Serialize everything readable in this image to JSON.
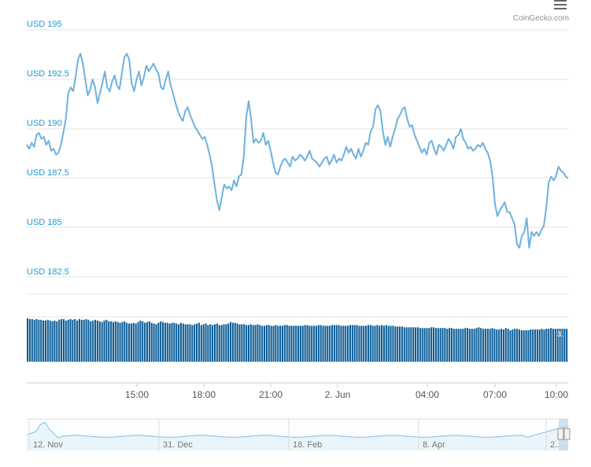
{
  "credit": "CoinGecko.com",
  "colors": {
    "price_line": "#6fb1de",
    "volume_bar": "#0a5c96",
    "y_label": "#1a9bd7",
    "grid": "#e6e6e6",
    "axis_text": "#555555",
    "navigator_line": "#7fbce3",
    "navigator_fill": "#eaf4fb",
    "navigator_handle": "#c5d9ec"
  },
  "chart_data": {
    "type": "line",
    "series": [
      {
        "values": [
          189.2,
          189.0,
          189.3,
          189.1,
          189.7,
          189.8,
          189.5,
          189.6,
          189.2,
          189.4,
          188.9,
          189.0,
          188.7,
          188.8,
          189.2,
          189.8,
          190.5,
          191.8,
          192.1,
          191.9,
          192.6,
          193.5,
          193.8,
          193.3,
          192.5,
          191.7,
          192.0,
          192.5,
          192.1,
          191.3,
          191.8,
          192.3,
          192.9,
          192.1,
          191.9,
          192.4,
          192.7,
          192.2,
          192.0,
          192.8,
          193.6,
          193.8,
          193.5,
          192.3,
          191.9,
          192.5,
          192.9,
          192.2,
          192.6,
          193.2,
          192.9,
          193.1,
          193.3,
          193.0,
          192.8,
          192.1,
          192.0,
          192.5,
          192.9,
          192.2,
          191.8,
          191.3,
          190.9,
          190.6,
          190.4,
          190.9,
          191.1,
          190.7,
          190.4,
          190.1,
          189.9,
          189.7,
          189.5,
          189.6,
          189.2,
          188.7,
          188.1,
          187.2,
          186.4,
          185.9,
          186.6,
          187.2,
          187.0,
          187.1,
          186.9,
          187.4,
          187.1,
          187.6,
          187.7,
          188.6,
          190.6,
          191.4,
          190.5,
          189.3,
          189.5,
          189.3,
          189.4,
          189.8,
          189.2,
          189.4,
          188.9,
          188.3,
          187.8,
          187.7,
          188.1,
          188.4,
          188.5,
          188.3,
          188.1,
          188.6,
          188.4,
          188.5,
          188.7,
          188.6,
          188.4,
          188.6,
          188.9,
          188.5,
          188.4,
          188.3,
          188.1,
          188.3,
          188.5,
          188.6,
          188.2,
          188.4,
          188.7,
          188.3,
          188.5,
          188.4,
          188.7,
          189.1,
          188.8,
          189.0,
          188.7,
          188.5,
          189.0,
          188.6,
          188.9,
          189.3,
          189.2,
          189.9,
          190.1,
          191.0,
          191.2,
          190.9,
          189.9,
          189.2,
          189.6,
          189.1,
          189.6,
          190.0,
          190.5,
          190.7,
          191.0,
          191.1,
          190.5,
          190.1,
          190.2,
          189.7,
          189.4,
          189.1,
          188.8,
          189.0,
          188.7,
          189.3,
          189.4,
          189.0,
          188.7,
          189.2,
          189.1,
          188.9,
          189.2,
          189.5,
          189.3,
          189.0,
          189.6,
          189.7,
          190.0,
          189.5,
          189.3,
          189.0,
          189.1,
          188.9,
          189.0,
          189.2,
          189.1,
          189.3,
          189.0,
          188.8,
          188.4,
          187.6,
          186.2,
          185.6,
          185.9,
          186.1,
          186.3,
          185.8,
          185.8,
          185.5,
          185.2,
          184.2,
          184.0,
          184.6,
          184.8,
          185.5,
          184.0,
          184.8,
          184.6,
          184.8,
          184.6,
          184.9,
          185.1,
          186.0,
          187.3,
          187.6,
          187.4,
          187.6,
          188.1,
          187.9,
          187.8,
          187.6,
          187.5
        ]
      }
    ],
    "volume": [
      58,
      57,
      57,
      56,
      57,
      56,
      56,
      55,
      55,
      56,
      55,
      54,
      55,
      54,
      56,
      57,
      57,
      55,
      56,
      57,
      56,
      57,
      55,
      57,
      56,
      56,
      57,
      56,
      54,
      55,
      56,
      55,
      54,
      53,
      55,
      56,
      54,
      54,
      53,
      54,
      53,
      52,
      53,
      54,
      52,
      51,
      51,
      52,
      51,
      53,
      55,
      54,
      52,
      53,
      54,
      52,
      51,
      50,
      52,
      54,
      53,
      52,
      52,
      51,
      52,
      52,
      51,
      50,
      52,
      51,
      50,
      50,
      50,
      49,
      50,
      51,
      52,
      49,
      50,
      51,
      49,
      50,
      49,
      50,
      51,
      49,
      49,
      50,
      50,
      51,
      53,
      52,
      52,
      51,
      50,
      50,
      50,
      49,
      49,
      50,
      49,
      49,
      50,
      49,
      48,
      48,
      49,
      49,
      48,
      48,
      49,
      48,
      48,
      48,
      49,
      49,
      48,
      48,
      48,
      48,
      48,
      48,
      48,
      49,
      49,
      48,
      48,
      48,
      48,
      49,
      49,
      48,
      48,
      48,
      48,
      49,
      49,
      49,
      49,
      48,
      48,
      48,
      48,
      49,
      49,
      49,
      49,
      48,
      48,
      48,
      48,
      49,
      49,
      48,
      48,
      49,
      48,
      49,
      48,
      49,
      48,
      48,
      48,
      47,
      47,
      47,
      47,
      46,
      46,
      46,
      46,
      46,
      46,
      46,
      45,
      45,
      45,
      45,
      45,
      46,
      46,
      45,
      45,
      45,
      45,
      45,
      44,
      45,
      45,
      44,
      44,
      44,
      44,
      44,
      45,
      45,
      44,
      44,
      44,
      45,
      46,
      45,
      44,
      44,
      44,
      44,
      45,
      44,
      43,
      43,
      44,
      43,
      45,
      44,
      42,
      43,
      44,
      44,
      43,
      42,
      42,
      42,
      42,
      43,
      43,
      43,
      43,
      43,
      44,
      43,
      44,
      44,
      45,
      44,
      44,
      44,
      44,
      44,
      44,
      44
    ],
    "volume_annotation": "3.",
    "x_ticks": [
      "15:00",
      "18:00",
      "21:00",
      "2. Jun",
      "04:00",
      "07:00",
      "10:00"
    ],
    "y_ticks": [
      "USD 195",
      "USD 192.5",
      "USD 190",
      "USD 187.5",
      "USD 185",
      "USD 182.5"
    ],
    "ylim": [
      180,
      195
    ],
    "grid": true,
    "navigator": {
      "labels": [
        "12. Nov",
        "31. Dec",
        "18. Feb",
        "8. Apr",
        "2..."
      ]
    }
  }
}
